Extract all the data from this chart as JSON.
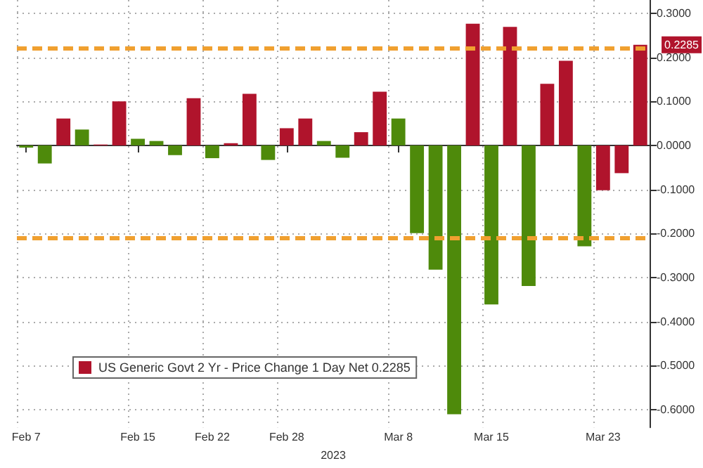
{
  "chart_data": {
    "type": "bar",
    "xlabel": "2023",
    "categories": [
      "Feb 7",
      null,
      null,
      null,
      null,
      null,
      "Feb 15",
      null,
      null,
      null,
      "Feb 22",
      null,
      null,
      null,
      "Feb 28",
      null,
      null,
      null,
      null,
      null,
      "Mar 8",
      null,
      null,
      null,
      null,
      "Mar 15",
      null,
      null,
      null,
      null,
      null,
      "Mar 23",
      null,
      null
    ],
    "series": [
      {
        "name": "US Generic Govt 2 Yr - Price Change 1 Day Net 0.2285",
        "color": "#b0142c",
        "values": [
          -0.005,
          -0.041,
          0.061,
          0.036,
          0.002,
          0.1,
          0.015,
          0.01,
          -0.022,
          0.107,
          -0.029,
          0.005,
          0.117,
          -0.033,
          0.039,
          0.061,
          0.01,
          -0.028,
          0.03,
          0.122,
          0.061,
          -0.199,
          -0.282,
          -0.61,
          0.276,
          -0.361,
          0.269,
          -0.319,
          0.14,
          0.192,
          -0.229,
          -0.102,
          -0.063,
          0.2285
        ],
        "colors": [
          "#4e8a0b",
          "#4e8a0b",
          "#b0142c",
          "#4e8a0b",
          "#b0142c",
          "#b0142c",
          "#4e8a0b",
          "#4e8a0b",
          "#4e8a0b",
          "#b0142c",
          "#4e8a0b",
          "#b0142c",
          "#b0142c",
          "#4e8a0b",
          "#b0142c",
          "#b0142c",
          "#4e8a0b",
          "#4e8a0b",
          "#b0142c",
          "#b0142c",
          "#4e8a0b",
          "#4e8a0b",
          "#4e8a0b",
          "#4e8a0b",
          "#b0142c",
          "#4e8a0b",
          "#b0142c",
          "#4e8a0b",
          "#b0142c",
          "#b0142c",
          "#4e8a0b",
          "#b0142c",
          "#b0142c",
          "#b0142c"
        ]
      }
    ],
    "ylim": [
      -0.64,
      0.33
    ],
    "yticks": [
      {
        "value": -0.6,
        "label": "-0.6000"
      },
      {
        "value": -0.5,
        "label": "-0.5000"
      },
      {
        "value": -0.4,
        "label": "-0.4000"
      },
      {
        "value": -0.3,
        "label": "-0.3000"
      },
      {
        "value": -0.2,
        "label": "-0.2000"
      },
      {
        "value": -0.1,
        "label": "-0.1000"
      },
      {
        "value": 0,
        "label": "0.0000"
      },
      {
        "value": 0.1,
        "label": "0.1000"
      },
      {
        "value": 0.2,
        "label": "0.2000"
      },
      {
        "value": 0.3,
        "label": "0.3000"
      }
    ],
    "ref_lines": [
      {
        "axis": "y",
        "value": 0.218,
        "color": "#f0a030",
        "line_style": "dashed"
      },
      {
        "axis": "y",
        "value": -0.21,
        "color": "#f0a030",
        "line_style": "dashed"
      }
    ],
    "annotations": [
      "0.2285"
    ],
    "grid": true,
    "legend": "bottom left"
  }
}
